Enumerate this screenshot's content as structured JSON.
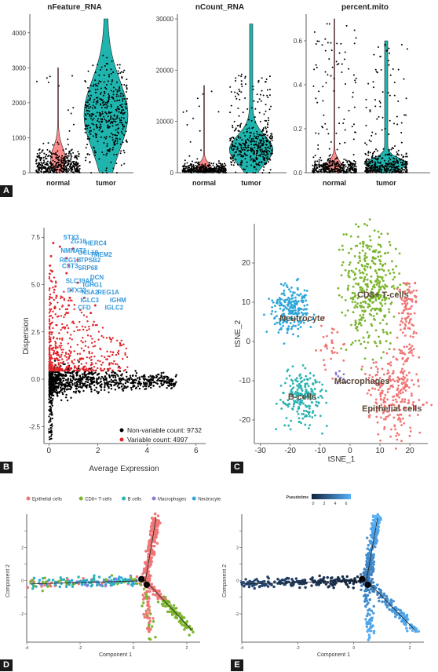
{
  "panels": [
    "A",
    "B",
    "C",
    "D",
    "E"
  ],
  "colors": {
    "violin_fill": "#1fb5ae",
    "normal_fill": "#ff8c8c",
    "red": "#e0262b",
    "black": "#000000",
    "epithelial": "#f07575",
    "cd8": "#7ab52c",
    "bcells": "#2ab3b3",
    "macrophages": "#8f7bd6",
    "neutrocyte": "#2fa6d9",
    "pseudo_low": "#12233d",
    "pseudo_high": "#56b1f7"
  },
  "chart_data": [
    {
      "id": "A1",
      "type": "violin",
      "title": "nFeature_RNA",
      "categories": [
        "normal",
        "tumor"
      ],
      "yticks": [
        0,
        1000,
        2000,
        3000,
        4000
      ],
      "ylim": [
        0,
        4400
      ],
      "distribution": {
        "normal": {
          "median": 380,
          "max": 3000
        },
        "tumor": {
          "median": 1650,
          "max": 4400
        }
      }
    },
    {
      "id": "A2",
      "type": "violin",
      "title": "nCount_RNA",
      "categories": [
        "normal",
        "tumor"
      ],
      "yticks": [
        0,
        10000,
        20000,
        30000
      ],
      "ylim": [
        0,
        30000
      ],
      "distribution": {
        "normal": {
          "median": 1000,
          "max": 17000
        },
        "tumor": {
          "median": 4500,
          "max": 29000
        }
      }
    },
    {
      "id": "A3",
      "type": "violin",
      "title": "percent.mito",
      "categories": [
        "normal",
        "tumor"
      ],
      "yticks": [
        0.0,
        0.2,
        0.4,
        0.6
      ],
      "ylim": [
        0,
        0.7
      ],
      "distribution": {
        "normal": {
          "median": 0.03,
          "max": 0.7
        },
        "tumor": {
          "median": 0.04,
          "max": 0.6
        }
      }
    },
    {
      "id": "B",
      "type": "scatter",
      "xlabel": "Average Expression",
      "ylabel": "Dispersion",
      "xticks": [
        0,
        2,
        4,
        6
      ],
      "yticks": [
        -2.5,
        0.0,
        2.5,
        5.0,
        7.5
      ],
      "xlim": [
        -0.2,
        6.2
      ],
      "ylim": [
        -3.4,
        7.8
      ],
      "legend": [
        {
          "label": "Non-variable count: 9732",
          "color": "#000000"
        },
        {
          "label": "Variable count: 4997",
          "color": "#e0262b"
        }
      ],
      "genes": [
        "STX3",
        "ZG16",
        "HERC4",
        "NMNAT1",
        "OCL18",
        "TMEM2",
        "REG1B",
        "TPSB2",
        "CST3",
        "SRP68",
        "SLC39A8",
        "DCN",
        "STX33",
        "IGHG1",
        "NSA2",
        "REG1A",
        "IGLC3",
        "IGHM",
        "CFD",
        "IGLC2"
      ]
    },
    {
      "id": "C",
      "type": "scatter",
      "xlabel": "tSNE_1",
      "ylabel": "tSNE_2",
      "xticks": [
        -30,
        -20,
        -10,
        0,
        10,
        20
      ],
      "yticks": [
        -20,
        -10,
        0,
        10,
        20
      ],
      "xlim": [
        -32,
        26
      ],
      "ylim": [
        -26,
        30
      ],
      "clusters": [
        {
          "name": "Neutrocyte",
          "center": [
            -20,
            8
          ]
        },
        {
          "name": "CD8+ T-cells",
          "center": [
            7,
            14
          ]
        },
        {
          "name": "B-cells",
          "center": [
            -16,
            -14
          ]
        },
        {
          "name": "Macrophages",
          "center": [
            -2,
            -9
          ]
        },
        {
          "name": "Epithelial cells",
          "center": [
            15,
            -12
          ]
        }
      ]
    },
    {
      "id": "D",
      "type": "scatter",
      "xlabel": "Component 1",
      "ylabel": "Component 2",
      "xticks": [
        -4,
        -2,
        0,
        2
      ],
      "yticks": [
        -2,
        -1,
        0,
        1,
        2,
        3
      ],
      "xlim": [
        -4,
        2.5
      ],
      "ylim": [
        -3.7,
        4
      ],
      "legend": [
        "Epithelial cells",
        "CD8+ T-cells",
        "B cells",
        "Macrophages",
        "Neutrocyte"
      ],
      "branch_nodes": [
        "2",
        "1"
      ]
    },
    {
      "id": "E",
      "type": "scatter",
      "xlabel": "Component 1",
      "ylabel": "Component 2",
      "xticks": [
        -4,
        -2,
        0,
        2
      ],
      "yticks": [
        -2,
        -1,
        0,
        1,
        2,
        3
      ],
      "xlim": [
        -4,
        2.5
      ],
      "ylim": [
        -3.7,
        4
      ],
      "colorbar_title": "Pseudotime",
      "colorbar_ticks": [
        "0",
        "2",
        "4",
        "6"
      ],
      "branch_nodes": [
        "2",
        "1"
      ]
    }
  ]
}
